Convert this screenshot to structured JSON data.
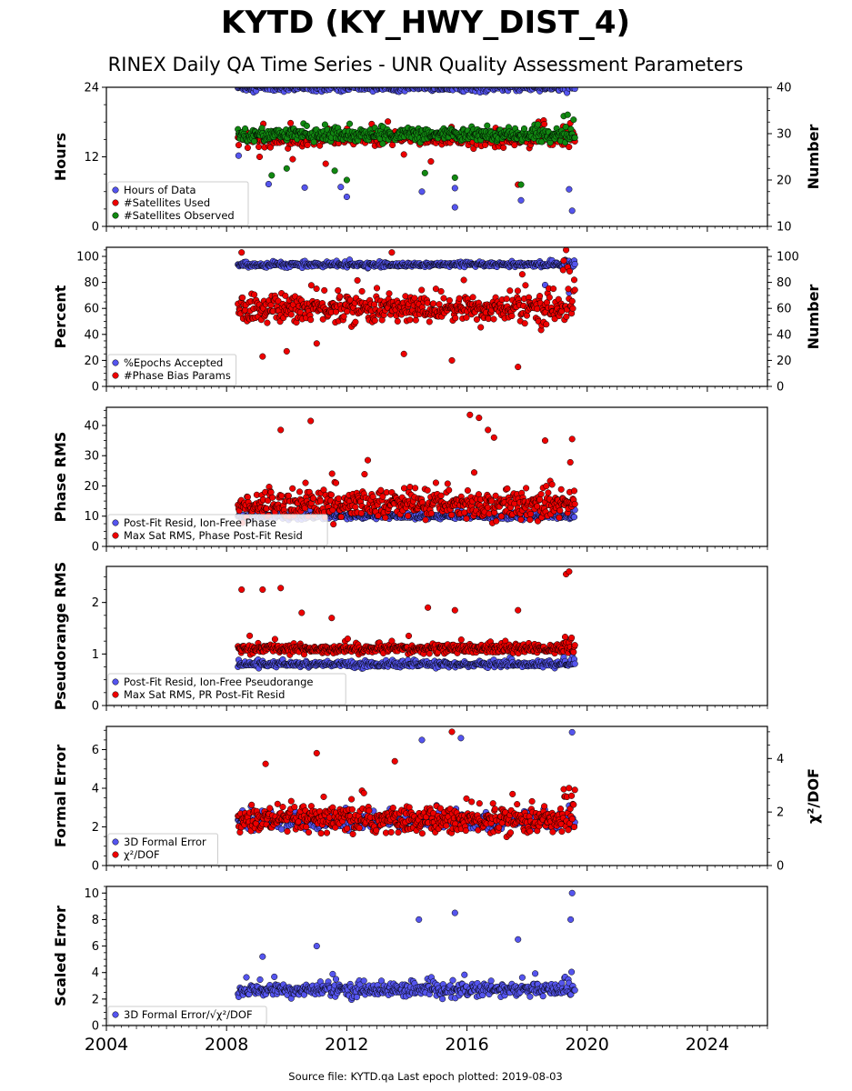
{
  "figure": {
    "title": "KYTD (KY_HWY_DIST_4)",
    "subtitle": "RINEX Daily QA Time Series - UNR Quality Assessment Parameters",
    "footer": "Source file: KYTD.qa Last epoch plotted: 2019-08-03"
  },
  "colors": {
    "blue": "#5555ee",
    "red": "#ee0000",
    "green": "#118811",
    "edge": "#000000"
  },
  "chart_data": [
    {
      "type": "scatter",
      "panel": "hours",
      "ylabel": "Hours",
      "ylim": [
        0,
        24
      ],
      "yticks": [
        "0",
        "12",
        "24"
      ],
      "ylabel_right": "Number",
      "ylim_right": [
        10,
        40
      ],
      "yticks_right": [
        "10",
        "20",
        "30",
        "40"
      ],
      "legend_position": "lower-left",
      "legend": [
        "Hours of Data",
        "#Satellites Used",
        "#Satellites Observed"
      ],
      "time_range": [
        "2008-05",
        "2019-08-03"
      ],
      "series": [
        {
          "name": "Hours of Data",
          "color": "blue",
          "axis": "left",
          "typical": 24.0,
          "spread": 0.6,
          "outliers": [
            [
              2008.4,
              12.2
            ],
            [
              2009.4,
              7.3
            ],
            [
              2010.6,
              6.7
            ],
            [
              2011.8,
              6.8
            ],
            [
              2012.0,
              5.1
            ],
            [
              2014.5,
              6.0
            ],
            [
              2015.6,
              3.3
            ],
            [
              2015.6,
              6.6
            ],
            [
              2017.8,
              4.5
            ],
            [
              2019.4,
              6.4
            ],
            [
              2019.5,
              2.7
            ]
          ]
        },
        {
          "name": "#Satellites Used",
          "color": "red",
          "axis": "right",
          "typical": 29.0,
          "spread": 1.4,
          "outliers": [
            [
              2009.1,
              25.0
            ],
            [
              2010.2,
              24.5
            ],
            [
              2011.3,
              23.5
            ],
            [
              2013.9,
              25.5
            ],
            [
              2014.8,
              24.0
            ],
            [
              2017.7,
              19.0
            ]
          ]
        },
        {
          "name": "#Satellites Observed",
          "color": "green",
          "axis": "right",
          "typical": 29.8,
          "spread": 1.2,
          "outliers": [
            [
              2009.5,
              21.0
            ],
            [
              2010.0,
              22.5
            ],
            [
              2011.6,
              22.0
            ],
            [
              2012.0,
              20.0
            ],
            [
              2014.6,
              21.5
            ],
            [
              2015.6,
              20.5
            ],
            [
              2017.8,
              19.0
            ]
          ]
        }
      ]
    },
    {
      "type": "scatter",
      "panel": "percent",
      "ylabel": "Percent",
      "ylim": [
        0,
        107
      ],
      "yticks": [
        "0",
        "20",
        "40",
        "60",
        "80",
        "100"
      ],
      "ylabel_right": "Number",
      "ylim_right": [
        0,
        107
      ],
      "yticks_right": [
        "0",
        "20",
        "40",
        "60",
        "80",
        "100"
      ],
      "legend_position": "lower-left",
      "legend": [
        "%Epochs Accepted",
        "#Phase Bias Params"
      ],
      "time_range": [
        "2008-05",
        "2019-08-03"
      ],
      "series": [
        {
          "name": "%Epochs Accepted",
          "color": "blue",
          "axis": "left",
          "typical": 93.5,
          "spread": 1.5,
          "outliers": [
            [
              2018.6,
              78.0
            ],
            [
              2019.4,
              72.0
            ]
          ]
        },
        {
          "name": "#Phase Bias Params",
          "color": "red",
          "axis": "right",
          "typical": 60.0,
          "spread": 10.0,
          "outliers": [
            [
              2009.2,
              23.0
            ],
            [
              2010.0,
              27.0
            ],
            [
              2011.0,
              33.0
            ],
            [
              2013.9,
              25.0
            ],
            [
              2015.5,
              20.0
            ],
            [
              2017.7,
              15.0
            ],
            [
              2019.3,
              105.0
            ],
            [
              2008.5,
              103.0
            ],
            [
              2013.5,
              103.0
            ]
          ]
        }
      ]
    },
    {
      "type": "scatter",
      "panel": "phase_rms",
      "ylabel": "Phase RMS",
      "ylim": [
        0,
        46
      ],
      "yticks": [
        "0",
        "10",
        "20",
        "30",
        "40"
      ],
      "legend_position": "lower-left",
      "legend": [
        "Post-Fit Resid, Ion-Free Phase",
        "Max Sat RMS, Phase Post-Fit Resid"
      ],
      "time_range": [
        "2008-05",
        "2019-08-03"
      ],
      "series": [
        {
          "name": "Post-Fit Resid, Ion-Free Phase",
          "color": "blue",
          "axis": "left",
          "typical": 10.0,
          "spread": 0.8,
          "outliers": []
        },
        {
          "name": "Max Sat RMS, Phase Post-Fit Resid",
          "color": "red",
          "axis": "left",
          "typical": 14.0,
          "spread": 4.0,
          "outliers": [
            [
              2009.8,
              38.5
            ],
            [
              2010.8,
              41.5
            ],
            [
              2016.1,
              43.5
            ],
            [
              2016.4,
              42.5
            ],
            [
              2016.7,
              38.5
            ],
            [
              2016.9,
              36.0
            ],
            [
              2018.6,
              35.0
            ],
            [
              2019.5,
              35.5
            ]
          ]
        }
      ]
    },
    {
      "type": "scatter",
      "panel": "pseudorange_rms",
      "ylabel": "Pseudorange RMS",
      "ylim": [
        0,
        2.7
      ],
      "yticks": [
        "0",
        "1",
        "2"
      ],
      "legend_position": "lower-left",
      "legend": [
        "Post-Fit Resid, Ion-Free Pseudorange",
        "Max Sat RMS, PR Post-Fit Resid"
      ],
      "time_range": [
        "2008-05",
        "2019-08-03"
      ],
      "series": [
        {
          "name": "Post-Fit Resid, Ion-Free Pseudorange",
          "color": "blue",
          "axis": "left",
          "typical": 0.8,
          "spread": 0.05,
          "outliers": []
        },
        {
          "name": "Max Sat RMS, PR Post-Fit Resid",
          "color": "red",
          "axis": "left",
          "typical": 1.1,
          "spread": 0.08,
          "outliers": [
            [
              2008.5,
              2.25
            ],
            [
              2009.2,
              2.25
            ],
            [
              2009.8,
              2.28
            ],
            [
              2010.5,
              1.8
            ],
            [
              2011.5,
              1.7
            ],
            [
              2014.7,
              1.9
            ],
            [
              2015.6,
              1.85
            ],
            [
              2017.7,
              1.85
            ],
            [
              2019.3,
              2.55
            ],
            [
              2019.4,
              2.6
            ]
          ]
        }
      ]
    },
    {
      "type": "scatter",
      "panel": "formal_error",
      "ylabel": "Formal Error",
      "ylim": [
        0,
        7.2
      ],
      "yticks": [
        "0",
        "2",
        "4",
        "6"
      ],
      "ylabel_right": "χ²/DOF",
      "ylim_right": [
        0,
        5.2
      ],
      "yticks_right": [
        "0",
        "2",
        "4"
      ],
      "legend_position": "lower-left",
      "legend": [
        "3D Formal Error",
        "χ²/DOF"
      ],
      "time_range": [
        "2008-05",
        "2019-08-03"
      ],
      "series": [
        {
          "name": "3D Formal Error",
          "color": "blue",
          "axis": "left",
          "typical": 2.3,
          "spread": 0.35,
          "outliers": [
            [
              2014.5,
              6.5
            ],
            [
              2015.8,
              6.6
            ],
            [
              2019.5,
              6.9
            ]
          ]
        },
        {
          "name": "χ²/DOF",
          "color": "red",
          "axis": "right",
          "typical": 1.7,
          "spread": 0.45,
          "outliers": [
            [
              2015.5,
              5.0
            ],
            [
              2009.3,
              3.8
            ],
            [
              2011.0,
              4.2
            ],
            [
              2013.6,
              3.9
            ]
          ]
        }
      ]
    },
    {
      "type": "scatter",
      "panel": "scaled_error",
      "ylabel": "Scaled Error",
      "ylim": [
        0,
        10.5
      ],
      "yticks": [
        "0",
        "2",
        "4",
        "6",
        "8",
        "10"
      ],
      "legend_position": "lower-left",
      "legend": [
        "3D Formal Error/√χ²/DOF"
      ],
      "time_range": [
        "2008-05",
        "2019-08-03"
      ],
      "xticks": [
        "2004",
        "2008",
        "2012",
        "2016",
        "2020",
        "2024"
      ],
      "xlim": [
        2004,
        2026
      ],
      "series": [
        {
          "name": "3D Formal Error/√χ²/DOF",
          "color": "blue",
          "axis": "left",
          "typical": 2.7,
          "spread": 0.45,
          "outliers": [
            [
              2009.2,
              5.2
            ],
            [
              2011.0,
              6.0
            ],
            [
              2014.4,
              8.0
            ],
            [
              2015.6,
              8.5
            ],
            [
              2017.7,
              6.5
            ],
            [
              2019.5,
              10.0
            ],
            [
              2019.45,
              8.0
            ]
          ]
        }
      ]
    }
  ]
}
